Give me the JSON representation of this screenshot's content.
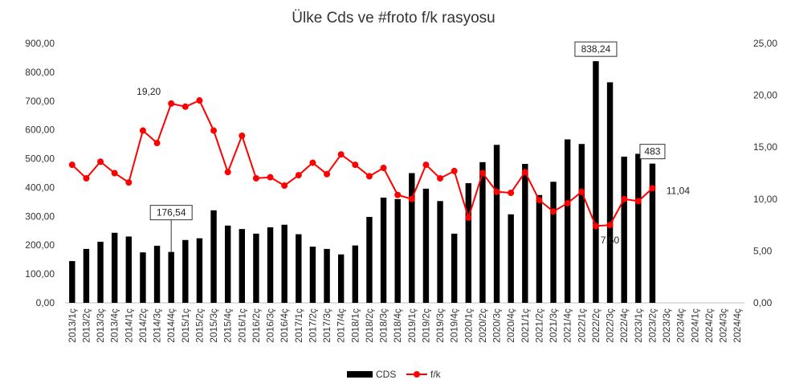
{
  "chart_data": {
    "type": "bar",
    "title": "Ülke Cds ve #froto f/k rasyosu",
    "categories": [
      "2013/1ç",
      "2013/2ç",
      "2013/3ç",
      "2013/4ç",
      "2014/1ç",
      "2014/2ç",
      "2014/3ç",
      "2014/4ç",
      "2015/1ç",
      "2015/2ç",
      "2015/3ç",
      "2015/4ç",
      "2016/1ç",
      "2016/2ç",
      "2016/3ç",
      "2016/4ç",
      "2017/1ç",
      "2017/2ç",
      "2017/3ç",
      "2017/4ç",
      "2018/1ç",
      "2018/2ç",
      "2018/3ç",
      "2018/4ç",
      "2019/1ç",
      "2019/2ç",
      "2019/3ç",
      "2019/4ç",
      "2020/1ç",
      "2020/2ç",
      "2020/3ç",
      "2020/4ç",
      "2021/1ç",
      "2021/2ç",
      "2021/3ç",
      "2021/4ç",
      "2022/1ç",
      "2022/2ç",
      "2022/3ç",
      "2022/4ç",
      "2023/1ç",
      "2023/2ç",
      "2023/3ç",
      "2023/4ç",
      "2024/1ç",
      "2024/2ç",
      "2024/3ç",
      "2024/4ç"
    ],
    "series": [
      {
        "name": "CDS",
        "type": "bar",
        "axis": "left",
        "color": "#000000",
        "values": [
          145,
          187,
          212,
          243,
          230,
          175,
          198,
          176.54,
          218,
          224,
          321,
          268,
          256,
          240,
          262,
          271,
          238,
          195,
          187,
          168,
          199,
          298,
          365,
          360,
          450,
          396,
          353,
          240,
          415,
          488,
          548,
          307,
          482,
          374,
          420,
          567,
          551,
          838.24,
          765,
          507,
          517,
          483,
          null,
          null,
          null,
          null,
          null,
          null
        ]
      },
      {
        "name": "f/k",
        "type": "line",
        "axis": "right",
        "color": "#ff0000",
        "values": [
          13.3,
          12.0,
          13.6,
          12.5,
          11.6,
          16.6,
          15.4,
          19.2,
          18.9,
          19.5,
          16.6,
          12.6,
          16.1,
          12.0,
          12.1,
          11.3,
          12.3,
          13.5,
          12.4,
          14.3,
          13.3,
          12.2,
          13.0,
          10.4,
          10.0,
          13.3,
          12.0,
          12.7,
          8.2,
          12.5,
          10.7,
          10.6,
          12.6,
          9.9,
          8.8,
          9.6,
          10.7,
          7.4,
          7.5,
          10.0,
          9.8,
          11.04,
          null,
          null,
          null,
          null,
          null,
          null
        ]
      }
    ],
    "left_axis": {
      "min": 0,
      "max": 900,
      "ticks": [
        "0,00",
        "100,00",
        "200,00",
        "300,00",
        "400,00",
        "500,00",
        "600,00",
        "700,00",
        "800,00",
        "900,00"
      ]
    },
    "right_axis": {
      "min": 0,
      "max": 25,
      "ticks": [
        "0,00",
        "5,00",
        "10,00",
        "15,00",
        "20,00",
        "25,00"
      ]
    },
    "annotations": [
      {
        "text": "176,54",
        "series": "CDS",
        "index": 7,
        "boxed": true
      },
      {
        "text": "838,24",
        "series": "CDS",
        "index": 37,
        "boxed": true
      },
      {
        "text": "483",
        "series": "CDS",
        "index": 41,
        "boxed": true
      },
      {
        "text": "19,20",
        "series": "f/k",
        "index": 7,
        "boxed": false
      },
      {
        "text": "7,50",
        "series": "f/k",
        "index": 38,
        "boxed": false
      },
      {
        "text": "11,04",
        "series": "f/k",
        "index": 41,
        "boxed": false
      }
    ],
    "legend": {
      "position": "bottom",
      "items": [
        {
          "label": "CDS",
          "color": "#000000",
          "kind": "bar"
        },
        {
          "label": "f/k",
          "color": "#ff0000",
          "kind": "line-marker"
        }
      ]
    },
    "grid": false
  }
}
